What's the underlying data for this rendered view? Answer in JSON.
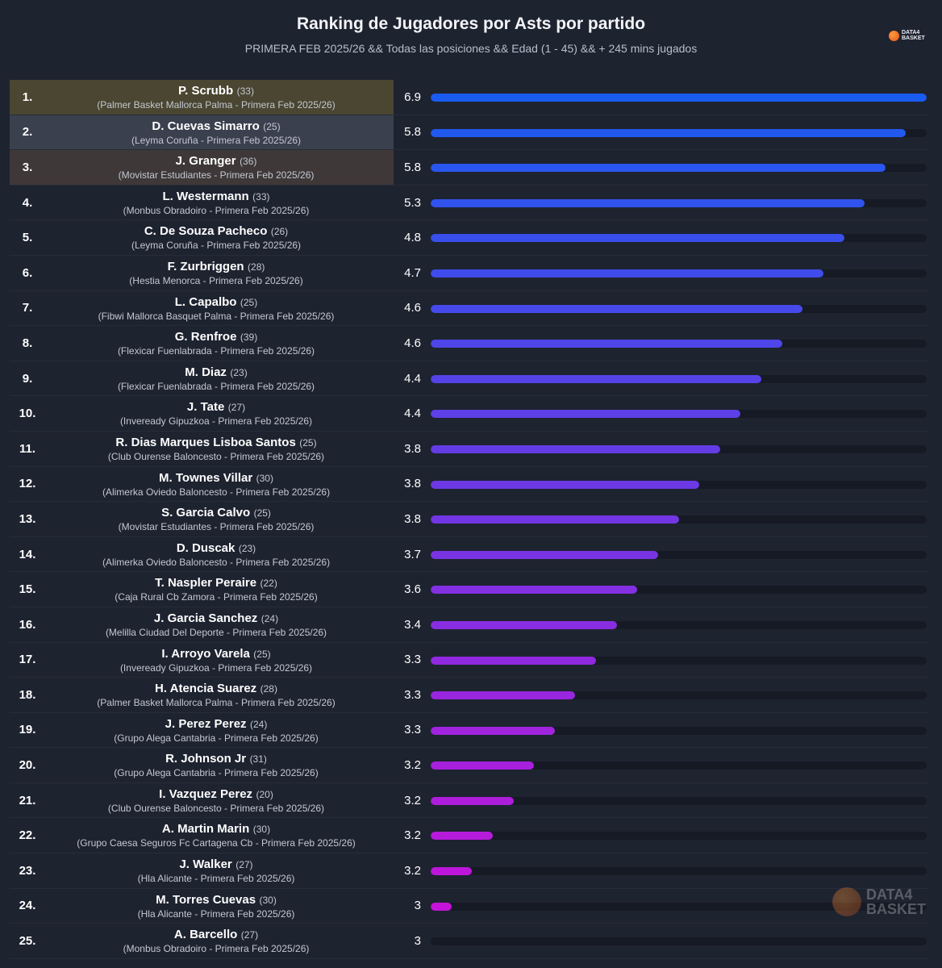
{
  "header": {
    "title": "Ranking de Jugadores por Asts por partido",
    "subtitle": "PRIMERA FEB 2025/26 && Todas las posiciones && Edad (1 - 45) && + 245 mins jugados",
    "logo_top": "DATA4",
    "logo_bottom": "BASKET"
  },
  "watermark": {
    "top": "DATA4",
    "bottom": "BASKET"
  },
  "colors": {
    "background": "#1e2330",
    "bar_start": "#1a5cf0",
    "bar_end": "#cc10d8",
    "highlight_gold": "#4a4631",
    "highlight_silver": "#3a404e",
    "highlight_bronze": "#3f3838"
  },
  "chart_data": {
    "type": "bar",
    "orientation": "horizontal",
    "title": "Ranking de Jugadores por Asts por partido",
    "metric": "Asts por partido",
    "rows": [
      {
        "rank": "1.",
        "name": "P. Scrubb",
        "age": "(33)",
        "team": "(Palmer Basket Mallorca Palma - Primera Feb 2025/26)",
        "value": 6.9
      },
      {
        "rank": "2.",
        "name": "D. Cuevas Simarro",
        "age": "(25)",
        "team": "(Leyma Coruña - Primera Feb 2025/26)",
        "value": 5.8
      },
      {
        "rank": "3.",
        "name": "J. Granger",
        "age": "(36)",
        "team": "(Movistar Estudiantes - Primera Feb 2025/26)",
        "value": 5.8
      },
      {
        "rank": "4.",
        "name": "L. Westermann",
        "age": "(33)",
        "team": "(Monbus Obradoiro - Primera Feb 2025/26)",
        "value": 5.3
      },
      {
        "rank": "5.",
        "name": "C. De Souza Pacheco",
        "age": "(26)",
        "team": "(Leyma Coruña - Primera Feb 2025/26)",
        "value": 4.8
      },
      {
        "rank": "6.",
        "name": "F. Zurbriggen",
        "age": "(28)",
        "team": "(Hestia Menorca - Primera Feb 2025/26)",
        "value": 4.7
      },
      {
        "rank": "7.",
        "name": "L. Capalbo",
        "age": "(25)",
        "team": "(Fibwi Mallorca Basquet Palma - Primera Feb 2025/26)",
        "value": 4.6
      },
      {
        "rank": "8.",
        "name": "G. Renfroe",
        "age": "(39)",
        "team": "(Flexicar Fuenlabrada - Primera Feb 2025/26)",
        "value": 4.6
      },
      {
        "rank": "9.",
        "name": "M. Diaz",
        "age": "(23)",
        "team": "(Flexicar Fuenlabrada - Primera Feb 2025/26)",
        "value": 4.4
      },
      {
        "rank": "10.",
        "name": "J. Tate",
        "age": "(27)",
        "team": "(Inveready Gipuzkoa - Primera Feb 2025/26)",
        "value": 4.4
      },
      {
        "rank": "11.",
        "name": "R. Dias Marques Lisboa Santos",
        "age": "(25)",
        "team": "(Club Ourense Baloncesto - Primera Feb 2025/26)",
        "value": 3.8
      },
      {
        "rank": "12.",
        "name": "M. Townes Villar",
        "age": "(30)",
        "team": "(Alimerka Oviedo Baloncesto - Primera Feb 2025/26)",
        "value": 3.8
      },
      {
        "rank": "13.",
        "name": "S. Garcia Calvo",
        "age": "(25)",
        "team": "(Movistar Estudiantes - Primera Feb 2025/26)",
        "value": 3.8
      },
      {
        "rank": "14.",
        "name": "D. Duscak",
        "age": "(23)",
        "team": "(Alimerka Oviedo Baloncesto - Primera Feb 2025/26)",
        "value": 3.7
      },
      {
        "rank": "15.",
        "name": "T. Naspler Peraire",
        "age": "(22)",
        "team": "(Caja Rural Cb Zamora - Primera Feb 2025/26)",
        "value": 3.6
      },
      {
        "rank": "16.",
        "name": "J. Garcia Sanchez",
        "age": "(24)",
        "team": "(Melilla Ciudad Del Deporte - Primera Feb 2025/26)",
        "value": 3.4
      },
      {
        "rank": "17.",
        "name": "I. Arroyo Varela",
        "age": "(25)",
        "team": "(Inveready Gipuzkoa - Primera Feb 2025/26)",
        "value": 3.3
      },
      {
        "rank": "18.",
        "name": "H. Atencia Suarez",
        "age": "(28)",
        "team": "(Palmer Basket Mallorca Palma - Primera Feb 2025/26)",
        "value": 3.3
      },
      {
        "rank": "19.",
        "name": "J. Perez Perez",
        "age": "(24)",
        "team": "(Grupo Alega Cantabria - Primera Feb 2025/26)",
        "value": 3.3
      },
      {
        "rank": "20.",
        "name": "R. Johnson Jr",
        "age": "(31)",
        "team": "(Grupo Alega Cantabria - Primera Feb 2025/26)",
        "value": 3.2
      },
      {
        "rank": "21.",
        "name": "I. Vazquez Perez",
        "age": "(20)",
        "team": "(Club Ourense Baloncesto - Primera Feb 2025/26)",
        "value": 3.2
      },
      {
        "rank": "22.",
        "name": "A. Martin Marin",
        "age": "(30)",
        "team": "(Grupo Caesa Seguros Fc Cartagena Cb - Primera Feb 2025/26)",
        "value": 3.2
      },
      {
        "rank": "23.",
        "name": "J. Walker",
        "age": "(27)",
        "team": "(Hla Alicante - Primera Feb 2025/26)",
        "value": 3.2
      },
      {
        "rank": "24.",
        "name": "M. Torres Cuevas",
        "age": "(30)",
        "team": "(Hla Alicante - Primera Feb 2025/26)",
        "value": 3
      },
      {
        "rank": "25.",
        "name": "A. Barcello",
        "age": "(27)",
        "team": "(Monbus Obradoiro - Primera Feb 2025/26)",
        "value": 3
      }
    ]
  }
}
